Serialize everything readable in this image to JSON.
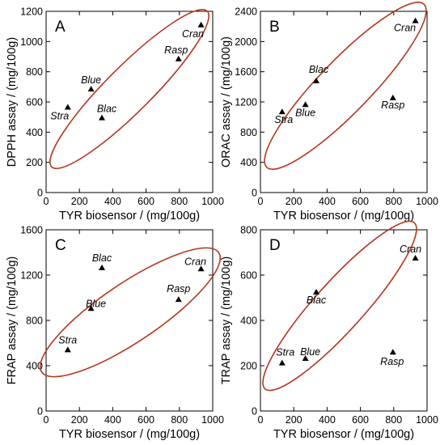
{
  "chart_data": [
    {
      "type": "scatter",
      "panel": "A",
      "xlabel": "TYR biosensor / (mg/100g)",
      "ylabel": "DPPH assay / (mg/100g)",
      "xlim": [
        0,
        1000
      ],
      "ylim": [
        0,
        1200
      ],
      "xticks": [
        0,
        200,
        400,
        600,
        800,
        1000
      ],
      "yticks": [
        0,
        200,
        400,
        600,
        800,
        1000,
        1200
      ],
      "grid": false,
      "marker_color": "#000000",
      "ellipse_color": "#b5361f",
      "points": [
        {
          "label": "Stra",
          "x": 130,
          "y": 565
        },
        {
          "label": "Blue",
          "x": 270,
          "y": 685
        },
        {
          "label": "Blac",
          "x": 335,
          "y": 495
        },
        {
          "label": "Rasp",
          "x": 795,
          "y": 885
        },
        {
          "label": "Cran",
          "x": 930,
          "y": 1110
        }
      ]
    },
    {
      "type": "scatter",
      "panel": "B",
      "xlabel": "TYR biosensor / (mg/100g)",
      "ylabel": "ORAC assay / (mg/100g)",
      "xlim": [
        0,
        1000
      ],
      "ylim": [
        0,
        2400
      ],
      "xticks": [
        0,
        200,
        400,
        600,
        800,
        1000
      ],
      "yticks": [
        0,
        400,
        800,
        1200,
        1600,
        2000,
        2400
      ],
      "grid": false,
      "marker_color": "#000000",
      "ellipse_color": "#b5361f",
      "points": [
        {
          "label": "Stra",
          "x": 130,
          "y": 1070
        },
        {
          "label": "Blue",
          "x": 270,
          "y": 1165
        },
        {
          "label": "Blac",
          "x": 335,
          "y": 1480
        },
        {
          "label": "Rasp",
          "x": 795,
          "y": 1255
        },
        {
          "label": "Cran",
          "x": 930,
          "y": 2275
        }
      ]
    },
    {
      "type": "scatter",
      "panel": "C",
      "xlabel": "TYR biosensor / (mg/100g)",
      "ylabel": "FRAP assay / (mg/100g)",
      "xlim": [
        0,
        1000
      ],
      "ylim": [
        0,
        1600
      ],
      "xticks": [
        0,
        200,
        400,
        600,
        800,
        1000
      ],
      "yticks": [
        0,
        400,
        800,
        1200,
        1600
      ],
      "grid": false,
      "marker_color": "#000000",
      "ellipse_color": "#b5361f",
      "points": [
        {
          "label": "Stra",
          "x": 130,
          "y": 540
        },
        {
          "label": "Blue",
          "x": 270,
          "y": 905
        },
        {
          "label": "Blac",
          "x": 335,
          "y": 1265
        },
        {
          "label": "Rasp",
          "x": 795,
          "y": 985
        },
        {
          "label": "Cran",
          "x": 930,
          "y": 1255
        }
      ]
    },
    {
      "type": "scatter",
      "panel": "D",
      "xlabel": "TYR biosensor / (mg/100g)",
      "ylabel": "TRAP assay / (mg/100g)",
      "xlim": [
        0,
        1000
      ],
      "ylim": [
        0,
        800
      ],
      "xticks": [
        0,
        200,
        400,
        600,
        800,
        1000
      ],
      "yticks": [
        0,
        200,
        400,
        600,
        800
      ],
      "grid": false,
      "marker_color": "#000000",
      "ellipse_color": "#b5361f",
      "points": [
        {
          "label": "Stra",
          "x": 130,
          "y": 212
        },
        {
          "label": "Blue",
          "x": 270,
          "y": 232
        },
        {
          "label": "Blac",
          "x": 335,
          "y": 525
        },
        {
          "label": "Rasp",
          "x": 795,
          "y": 260
        },
        {
          "label": "Cran",
          "x": 930,
          "y": 675
        }
      ]
    }
  ]
}
